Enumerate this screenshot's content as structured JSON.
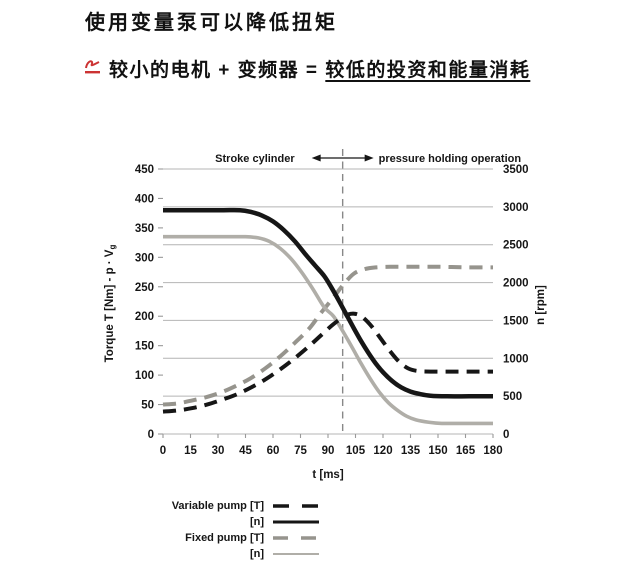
{
  "header": {
    "title": "使用变量泵可以降低扭矩",
    "bullet_prefix": "较小的电机 + 变频器 = ",
    "bullet_underlined": "较低的投资和能量消耗"
  },
  "chart_data": {
    "type": "line",
    "xlabel": "t [ms]",
    "ylabel_left": "Torque T [Nm] - p · V",
    "ylabel_left_sub": "g",
    "ylabel_right": "n [rpm]",
    "x_range": [
      0,
      180
    ],
    "x_ticks": [
      0,
      15,
      30,
      45,
      60,
      75,
      90,
      105,
      120,
      135,
      150,
      165,
      180
    ],
    "y_left_range": [
      0,
      450
    ],
    "y_left_ticks": [
      0,
      50,
      100,
      150,
      200,
      250,
      300,
      350,
      400,
      450
    ],
    "y_right_range": [
      0,
      3500
    ],
    "y_right_ticks": [
      0,
      500,
      1000,
      1500,
      2000,
      2500,
      3000,
      3500
    ],
    "phase_divider_t": 98,
    "annotation_left": "Stroke cylinder",
    "annotation_right": "pressure holding operation",
    "series": [
      {
        "name": "Variable pump [T]",
        "axis": "left",
        "color": "#161616",
        "style": "dashed",
        "width": 4,
        "points": [
          [
            0,
            38
          ],
          [
            8,
            40
          ],
          [
            16,
            44
          ],
          [
            24,
            50
          ],
          [
            32,
            58
          ],
          [
            40,
            67
          ],
          [
            48,
            79
          ],
          [
            56,
            93
          ],
          [
            64,
            110
          ],
          [
            72,
            129
          ],
          [
            80,
            150
          ],
          [
            86,
            167
          ],
          [
            92,
            184
          ],
          [
            97,
            196
          ],
          [
            101,
            203
          ],
          [
            105,
            204
          ],
          [
            109,
            198
          ],
          [
            114,
            182
          ],
          [
            119,
            161
          ],
          [
            124,
            140
          ],
          [
            129,
            122
          ],
          [
            134,
            111
          ],
          [
            139,
            107
          ],
          [
            146,
            106
          ],
          [
            158,
            106
          ],
          [
            170,
            106
          ],
          [
            180,
            106
          ]
        ]
      },
      {
        "name": "Variable pump [n]",
        "axis": "left",
        "color": "#161616",
        "style": "solid",
        "width": 4.5,
        "points": [
          [
            0,
            380
          ],
          [
            30,
            380
          ],
          [
            42,
            380
          ],
          [
            48,
            377
          ],
          [
            54,
            371
          ],
          [
            60,
            361
          ],
          [
            66,
            346
          ],
          [
            72,
            327
          ],
          [
            78,
            304
          ],
          [
            83,
            286
          ],
          [
            88,
            268
          ],
          [
            92,
            248
          ],
          [
            96,
            226
          ],
          [
            100,
            203
          ],
          [
            104,
            180
          ],
          [
            108,
            158
          ],
          [
            112,
            138
          ],
          [
            116,
            120
          ],
          [
            120,
            105
          ],
          [
            125,
            90
          ],
          [
            130,
            79
          ],
          [
            135,
            72
          ],
          [
            140,
            68
          ],
          [
            146,
            65
          ],
          [
            155,
            64
          ],
          [
            167,
            64
          ],
          [
            180,
            64
          ]
        ]
      },
      {
        "name": "Fixed pump [T]",
        "axis": "left",
        "color": "#96948d",
        "style": "dashed",
        "width": 4,
        "points": [
          [
            0,
            50
          ],
          [
            8,
            52
          ],
          [
            16,
            57
          ],
          [
            24,
            63
          ],
          [
            32,
            71
          ],
          [
            40,
            82
          ],
          [
            48,
            95
          ],
          [
            56,
            112
          ],
          [
            64,
            132
          ],
          [
            72,
            155
          ],
          [
            80,
            180
          ],
          [
            86,
            205
          ],
          [
            92,
            228
          ],
          [
            98,
            252
          ],
          [
            104,
            272
          ],
          [
            110,
            280
          ],
          [
            116,
            283
          ],
          [
            124,
            284
          ],
          [
            135,
            284
          ],
          [
            150,
            284
          ],
          [
            165,
            283
          ],
          [
            180,
            283
          ]
        ]
      },
      {
        "name": "Fixed pump [n]",
        "axis": "left",
        "color": "#b0aea8",
        "style": "solid",
        "width": 3.6,
        "points": [
          [
            0,
            335
          ],
          [
            30,
            335
          ],
          [
            45,
            335
          ],
          [
            52,
            333
          ],
          [
            58,
            327
          ],
          [
            64,
            315
          ],
          [
            70,
            297
          ],
          [
            76,
            273
          ],
          [
            82,
            245
          ],
          [
            88,
            215
          ],
          [
            93,
            200
          ],
          [
            98,
            175
          ],
          [
            103,
            148
          ],
          [
            108,
            120
          ],
          [
            113,
            94
          ],
          [
            118,
            71
          ],
          [
            123,
            53
          ],
          [
            128,
            40
          ],
          [
            133,
            30
          ],
          [
            138,
            24
          ],
          [
            145,
            20
          ],
          [
            152,
            18
          ],
          [
            165,
            18
          ],
          [
            180,
            18
          ]
        ]
      }
    ]
  },
  "legend": [
    {
      "label": "Variable pump [T]",
      "swatch": "black-dashed"
    },
    {
      "label": "[n]",
      "swatch": "black-solid"
    },
    {
      "label": "Fixed pump [T]",
      "swatch": "gray-dashed"
    },
    {
      "label": "[n]",
      "swatch": "gray-solid"
    }
  ]
}
